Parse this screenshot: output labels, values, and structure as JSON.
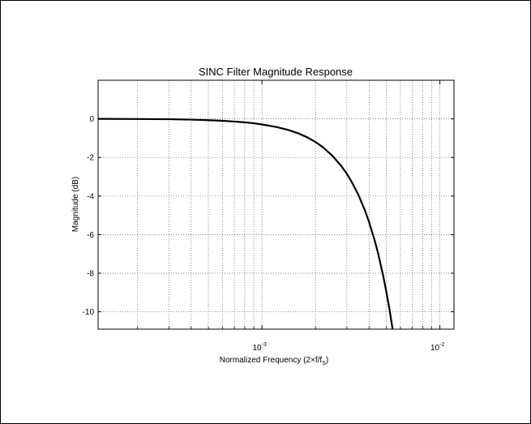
{
  "chart_data": {
    "type": "line",
    "title": "SINC Filter Magnitude Response",
    "xlabel": "Normalized Frequency (2×f/f",
    "xlabel_sub": "S",
    "xlabel_end": ")",
    "ylabel": "Magnitude (dB)",
    "xscale": "log",
    "xlim": [
      0.00012,
      0.012
    ],
    "ylim": [
      -10.9,
      2.0
    ],
    "grid": true,
    "x_ticks": [
      {
        "value": 0.001,
        "base": "10",
        "exp": "-3"
      },
      {
        "value": 0.01,
        "base": "10",
        "exp": "-2"
      }
    ],
    "y_ticks": [
      0,
      -2,
      -4,
      -6,
      -8,
      -10
    ],
    "series": [
      {
        "x": [
          0.00012,
          0.0002,
          0.0003,
          0.0004,
          0.0005,
          0.0006,
          0.0007,
          0.0008,
          0.0009,
          0.001,
          0.0012,
          0.0014,
          0.0016,
          0.0018,
          0.002,
          0.0022,
          0.0025,
          0.0028,
          0.003,
          0.0032,
          0.0035,
          0.0038,
          0.004,
          0.0043,
          0.0045,
          0.0048,
          0.005,
          0.0052,
          0.0055,
          0.0058
        ],
        "values": [
          0.0,
          -0.01,
          -0.02,
          -0.04,
          -0.07,
          -0.1,
          -0.14,
          -0.18,
          -0.23,
          -0.29,
          -0.42,
          -0.57,
          -0.75,
          -0.96,
          -1.2,
          -1.47,
          -1.93,
          -2.46,
          -2.85,
          -3.28,
          -3.98,
          -4.77,
          -5.35,
          -6.3,
          -6.99,
          -8.13,
          -8.96,
          -9.83,
          -11.25,
          -12.8
        ]
      }
    ]
  }
}
